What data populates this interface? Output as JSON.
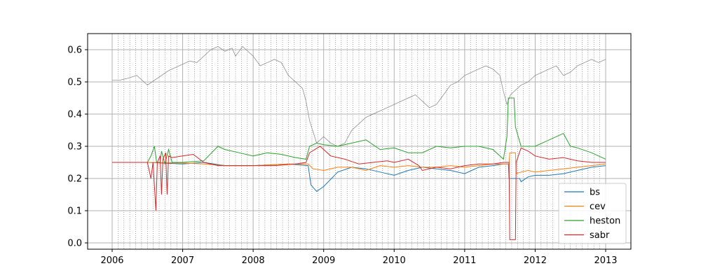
{
  "chart_data": {
    "type": "line",
    "title": "",
    "xlabel": "",
    "ylabel": "",
    "xlim": [
      2006.0,
      2013.0
    ],
    "ylim": [
      -0.02,
      0.645
    ],
    "x_ticks": [
      2006,
      2007,
      2008,
      2009,
      2010,
      2011,
      2012,
      2013
    ],
    "x_tick_labels": [
      "2006",
      "2007",
      "2008",
      "2009",
      "2010",
      "2011",
      "2012",
      "2013"
    ],
    "y_ticks": [
      0.0,
      0.1,
      0.2,
      0.3,
      0.4,
      0.5,
      0.6
    ],
    "y_tick_labels": [
      "0.0",
      "0.1",
      "0.2",
      "0.3",
      "0.4",
      "0.5",
      "0.6"
    ],
    "grid": true,
    "monthly_dotted_gridlines": true,
    "legend_position": "lower-right",
    "underlying": {
      "color": "#808080",
      "x": [
        2006.0,
        2006.1,
        2006.2,
        2006.35,
        2006.45,
        2006.5,
        2006.6,
        2006.7,
        2006.8,
        2006.9,
        2007.0,
        2007.1,
        2007.2,
        2007.3,
        2007.4,
        2007.5,
        2007.6,
        2007.7,
        2007.75,
        2007.85,
        2007.9,
        2008.0,
        2008.1,
        2008.2,
        2008.3,
        2008.4,
        2008.5,
        2008.6,
        2008.7,
        2008.75,
        2008.8,
        2008.9,
        2009.0,
        2009.1,
        2009.2,
        2009.3,
        2009.4,
        2009.5,
        2009.6,
        2009.7,
        2009.8,
        2009.9,
        2010.0,
        2010.1,
        2010.2,
        2010.3,
        2010.4,
        2010.5,
        2010.6,
        2010.7,
        2010.8,
        2010.9,
        2011.0,
        2011.1,
        2011.2,
        2011.3,
        2011.4,
        2011.5,
        2011.55,
        2011.6,
        2011.65,
        2011.7,
        2011.8,
        2011.9,
        2012.0,
        2012.1,
        2012.2,
        2012.3,
        2012.4,
        2012.5,
        2012.6,
        2012.7,
        2012.8,
        2012.9,
        2013.0
      ],
      "values": [
        0.505,
        0.505,
        0.51,
        0.52,
        0.5,
        0.49,
        0.505,
        0.52,
        0.535,
        0.545,
        0.555,
        0.565,
        0.56,
        0.58,
        0.6,
        0.61,
        0.595,
        0.605,
        0.58,
        0.61,
        0.6,
        0.58,
        0.55,
        0.56,
        0.57,
        0.56,
        0.52,
        0.5,
        0.48,
        0.44,
        0.38,
        0.31,
        0.33,
        0.31,
        0.3,
        0.31,
        0.35,
        0.37,
        0.39,
        0.4,
        0.41,
        0.42,
        0.43,
        0.44,
        0.45,
        0.46,
        0.44,
        0.42,
        0.43,
        0.46,
        0.49,
        0.5,
        0.52,
        0.53,
        0.54,
        0.55,
        0.54,
        0.52,
        0.47,
        0.43,
        0.46,
        0.47,
        0.49,
        0.5,
        0.52,
        0.53,
        0.54,
        0.55,
        0.52,
        0.53,
        0.55,
        0.56,
        0.57,
        0.56,
        0.57
      ]
    },
    "series": [
      {
        "name": "bs",
        "color": "#1f77b4",
        "x": [
          2006.0,
          2006.5,
          2007.0,
          2007.3,
          2007.6,
          2008.0,
          2008.5,
          2008.78,
          2008.82,
          2008.9,
          2009.0,
          2009.2,
          2009.4,
          2009.6,
          2009.8,
          2010.0,
          2010.2,
          2010.4,
          2010.6,
          2010.8,
          2011.0,
          2011.2,
          2011.4,
          2011.55,
          2011.62,
          2011.63,
          2011.78,
          2011.8,
          2011.9,
          2012.0,
          2012.2,
          2012.4,
          2012.6,
          2012.8,
          2013.0
        ],
        "values": [
          0.25,
          0.25,
          0.245,
          0.25,
          0.24,
          0.24,
          0.245,
          0.24,
          0.18,
          0.16,
          0.175,
          0.22,
          0.235,
          0.23,
          0.22,
          0.21,
          0.225,
          0.235,
          0.23,
          0.225,
          0.215,
          0.235,
          0.24,
          0.245,
          0.245,
          0.2,
          0.2,
          0.19,
          0.205,
          0.21,
          0.21,
          0.215,
          0.225,
          0.235,
          0.24
        ]
      },
      {
        "name": "cev",
        "color": "#ff7f0e",
        "x": [
          2006.0,
          2006.5,
          2007.0,
          2007.3,
          2007.6,
          2008.0,
          2008.5,
          2008.78,
          2008.85,
          2009.0,
          2009.2,
          2009.4,
          2009.6,
          2009.8,
          2010.0,
          2010.2,
          2010.4,
          2010.6,
          2010.8,
          2011.0,
          2011.2,
          2011.4,
          2011.55,
          2011.63,
          2011.64,
          2011.72,
          2011.73,
          2011.8,
          2011.9,
          2012.0,
          2012.2,
          2012.4,
          2012.6,
          2012.8,
          2013.0
        ],
        "values": [
          0.25,
          0.25,
          0.248,
          0.245,
          0.24,
          0.24,
          0.245,
          0.245,
          0.23,
          0.225,
          0.235,
          0.235,
          0.225,
          0.24,
          0.235,
          0.24,
          0.235,
          0.235,
          0.24,
          0.235,
          0.24,
          0.245,
          0.245,
          0.245,
          0.28,
          0.28,
          0.215,
          0.22,
          0.225,
          0.22,
          0.225,
          0.23,
          0.235,
          0.24,
          0.245
        ]
      },
      {
        "name": "heston",
        "color": "#2ca02c",
        "x": [
          2006.0,
          2006.4,
          2006.5,
          2006.55,
          2006.6,
          2006.63,
          2006.68,
          2006.7,
          2006.75,
          2006.8,
          2006.85,
          2007.0,
          2007.3,
          2007.5,
          2007.6,
          2007.8,
          2008.0,
          2008.2,
          2008.4,
          2008.6,
          2008.75,
          2008.8,
          2008.9,
          2009.0,
          2009.2,
          2009.4,
          2009.6,
          2009.8,
          2010.0,
          2010.2,
          2010.4,
          2010.6,
          2010.8,
          2011.0,
          2011.2,
          2011.4,
          2011.55,
          2011.6,
          2011.62,
          2011.7,
          2011.72,
          2011.8,
          2011.9,
          2012.0,
          2012.2,
          2012.4,
          2012.5,
          2012.6,
          2012.8,
          2013.0
        ],
        "values": [
          0.25,
          0.25,
          0.25,
          0.27,
          0.3,
          0.25,
          0.25,
          0.285,
          0.245,
          0.29,
          0.25,
          0.25,
          0.255,
          0.3,
          0.29,
          0.28,
          0.27,
          0.28,
          0.275,
          0.265,
          0.26,
          0.3,
          0.31,
          0.305,
          0.3,
          0.31,
          0.32,
          0.29,
          0.295,
          0.28,
          0.28,
          0.3,
          0.295,
          0.3,
          0.3,
          0.29,
          0.26,
          0.33,
          0.45,
          0.45,
          0.36,
          0.3,
          0.3,
          0.3,
          0.32,
          0.34,
          0.3,
          0.295,
          0.28,
          0.26
        ]
      },
      {
        "name": "sabr",
        "color": "#d62728",
        "x": [
          2006.0,
          2006.3,
          2006.45,
          2006.5,
          2006.55,
          2006.58,
          2006.62,
          2006.64,
          2006.68,
          2006.7,
          2006.72,
          2006.76,
          2006.78,
          2006.8,
          2006.85,
          2007.0,
          2007.15,
          2007.3,
          2007.5,
          2007.8,
          2008.0,
          2008.3,
          2008.6,
          2008.75,
          2008.8,
          2008.95,
          2009.1,
          2009.3,
          2009.5,
          2009.7,
          2009.9,
          2010.0,
          2010.2,
          2010.35,
          2010.4,
          2010.6,
          2010.8,
          2011.0,
          2011.2,
          2011.4,
          2011.55,
          2011.63,
          2011.64,
          2011.72,
          2011.73,
          2011.8,
          2011.9,
          2012.0,
          2012.2,
          2012.4,
          2012.6,
          2012.8,
          2013.0
        ],
        "values": [
          0.25,
          0.25,
          0.25,
          0.25,
          0.2,
          0.25,
          0.1,
          0.25,
          0.27,
          0.15,
          0.26,
          0.28,
          0.15,
          0.27,
          0.265,
          0.27,
          0.275,
          0.25,
          0.24,
          0.24,
          0.24,
          0.24,
          0.245,
          0.25,
          0.28,
          0.3,
          0.27,
          0.26,
          0.245,
          0.25,
          0.255,
          0.25,
          0.26,
          0.24,
          0.225,
          0.235,
          0.23,
          0.24,
          0.245,
          0.245,
          0.25,
          0.25,
          0.01,
          0.01,
          0.25,
          0.295,
          0.285,
          0.27,
          0.26,
          0.265,
          0.255,
          0.25,
          0.25
        ]
      }
    ]
  }
}
